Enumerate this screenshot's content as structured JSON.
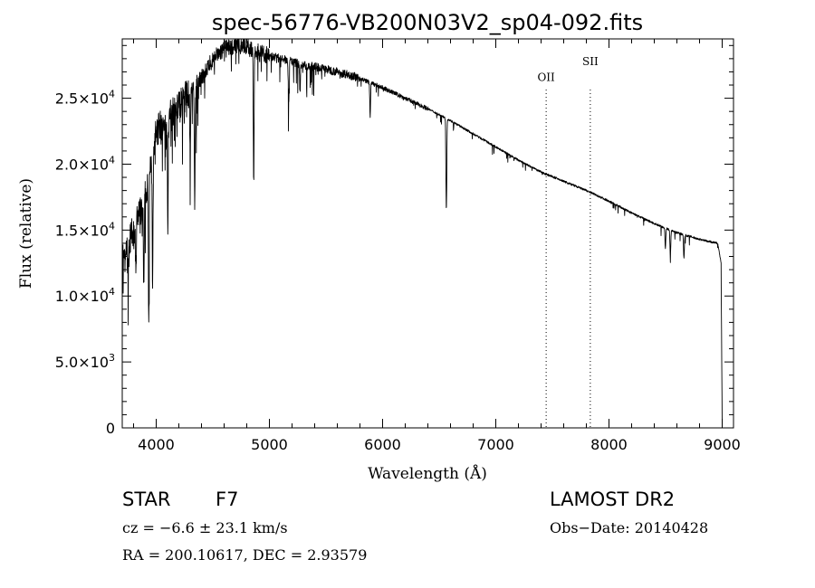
{
  "chart_data": {
    "type": "line",
    "title": "spec-56776-VB200N03V2_sp04-092.fits",
    "xlabel": "Wavelength (Å)",
    "ylabel": "Flux (relative)",
    "xlim": [
      3700,
      9100
    ],
    "ylim": [
      0,
      29500
    ],
    "xticks": [
      4000,
      5000,
      6000,
      7000,
      8000,
      9000
    ],
    "xtick_labels": [
      "4000",
      "5000",
      "6000",
      "7000",
      "8000",
      "9000"
    ],
    "yticks": [
      0,
      5000,
      10000,
      15000,
      20000,
      25000
    ],
    "ytick_labels": [
      {
        "mant": "0",
        "exp": ""
      },
      {
        "mant": "5.0×10",
        "exp": "3"
      },
      {
        "mant": "1.0×10",
        "exp": "4"
      },
      {
        "mant": "1.5×10",
        "exp": "4"
      },
      {
        "mant": "2.0×10",
        "exp": "4"
      },
      {
        "mant": "2.5×10",
        "exp": "4"
      }
    ],
    "grid": false,
    "series": [
      {
        "name": "spectrum",
        "continuum": [
          [
            3700,
            13000
          ],
          [
            3800,
            15000
          ],
          [
            3900,
            17500
          ],
          [
            4000,
            22500
          ],
          [
            4100,
            23500
          ],
          [
            4200,
            24500
          ],
          [
            4300,
            25500
          ],
          [
            4400,
            26500
          ],
          [
            4500,
            28000
          ],
          [
            4600,
            28700
          ],
          [
            4700,
            29000
          ],
          [
            4800,
            29000
          ],
          [
            4900,
            28500
          ],
          [
            5000,
            28200
          ],
          [
            5100,
            28000
          ],
          [
            5200,
            27800
          ],
          [
            5300,
            27500
          ],
          [
            5400,
            27400
          ],
          [
            5500,
            27200
          ],
          [
            5600,
            27000
          ],
          [
            5700,
            26800
          ],
          [
            5800,
            26500
          ],
          [
            6000,
            25800
          ],
          [
            6200,
            25000
          ],
          [
            6400,
            24200
          ],
          [
            6600,
            23300
          ],
          [
            6800,
            22300
          ],
          [
            7000,
            21300
          ],
          [
            7200,
            20300
          ],
          [
            7400,
            19400
          ],
          [
            7600,
            18700
          ],
          [
            7800,
            18000
          ],
          [
            8000,
            17200
          ],
          [
            8200,
            16300
          ],
          [
            8400,
            15500
          ],
          [
            8600,
            14800
          ],
          [
            8800,
            14300
          ],
          [
            8960,
            14000
          ],
          [
            8990,
            12500
          ],
          [
            9000,
            0
          ]
        ],
        "absorption_lines": [
          [
            3750,
            2500
          ],
          [
            3820,
            4000
          ],
          [
            3890,
            6000
          ],
          [
            3934,
            12000
          ],
          [
            3968,
            10500
          ],
          [
            4102,
            7000
          ],
          [
            4300,
            5000
          ],
          [
            4340,
            9500
          ],
          [
            4861,
            10500
          ],
          [
            5170,
            3500
          ],
          [
            5270,
            2000
          ],
          [
            5890,
            2500
          ],
          [
            6563,
            7000
          ],
          [
            8498,
            1500
          ],
          [
            8542,
            2000
          ],
          [
            8662,
            1800
          ]
        ]
      }
    ],
    "annotations": [
      {
        "label": "OII",
        "x": 7445,
        "y_label": 26300
      },
      {
        "label": "SII",
        "x": 7835,
        "y_label": 27500
      }
    ]
  },
  "info": {
    "object_class": "STAR",
    "subclass": "F7",
    "survey": "LAMOST DR2",
    "cz": "cz = −6.6 ± 23.1 km/s",
    "obs_date": "Obs−Date: 20140428",
    "coords": "RA = 200.10617, DEC =   2.93579"
  }
}
